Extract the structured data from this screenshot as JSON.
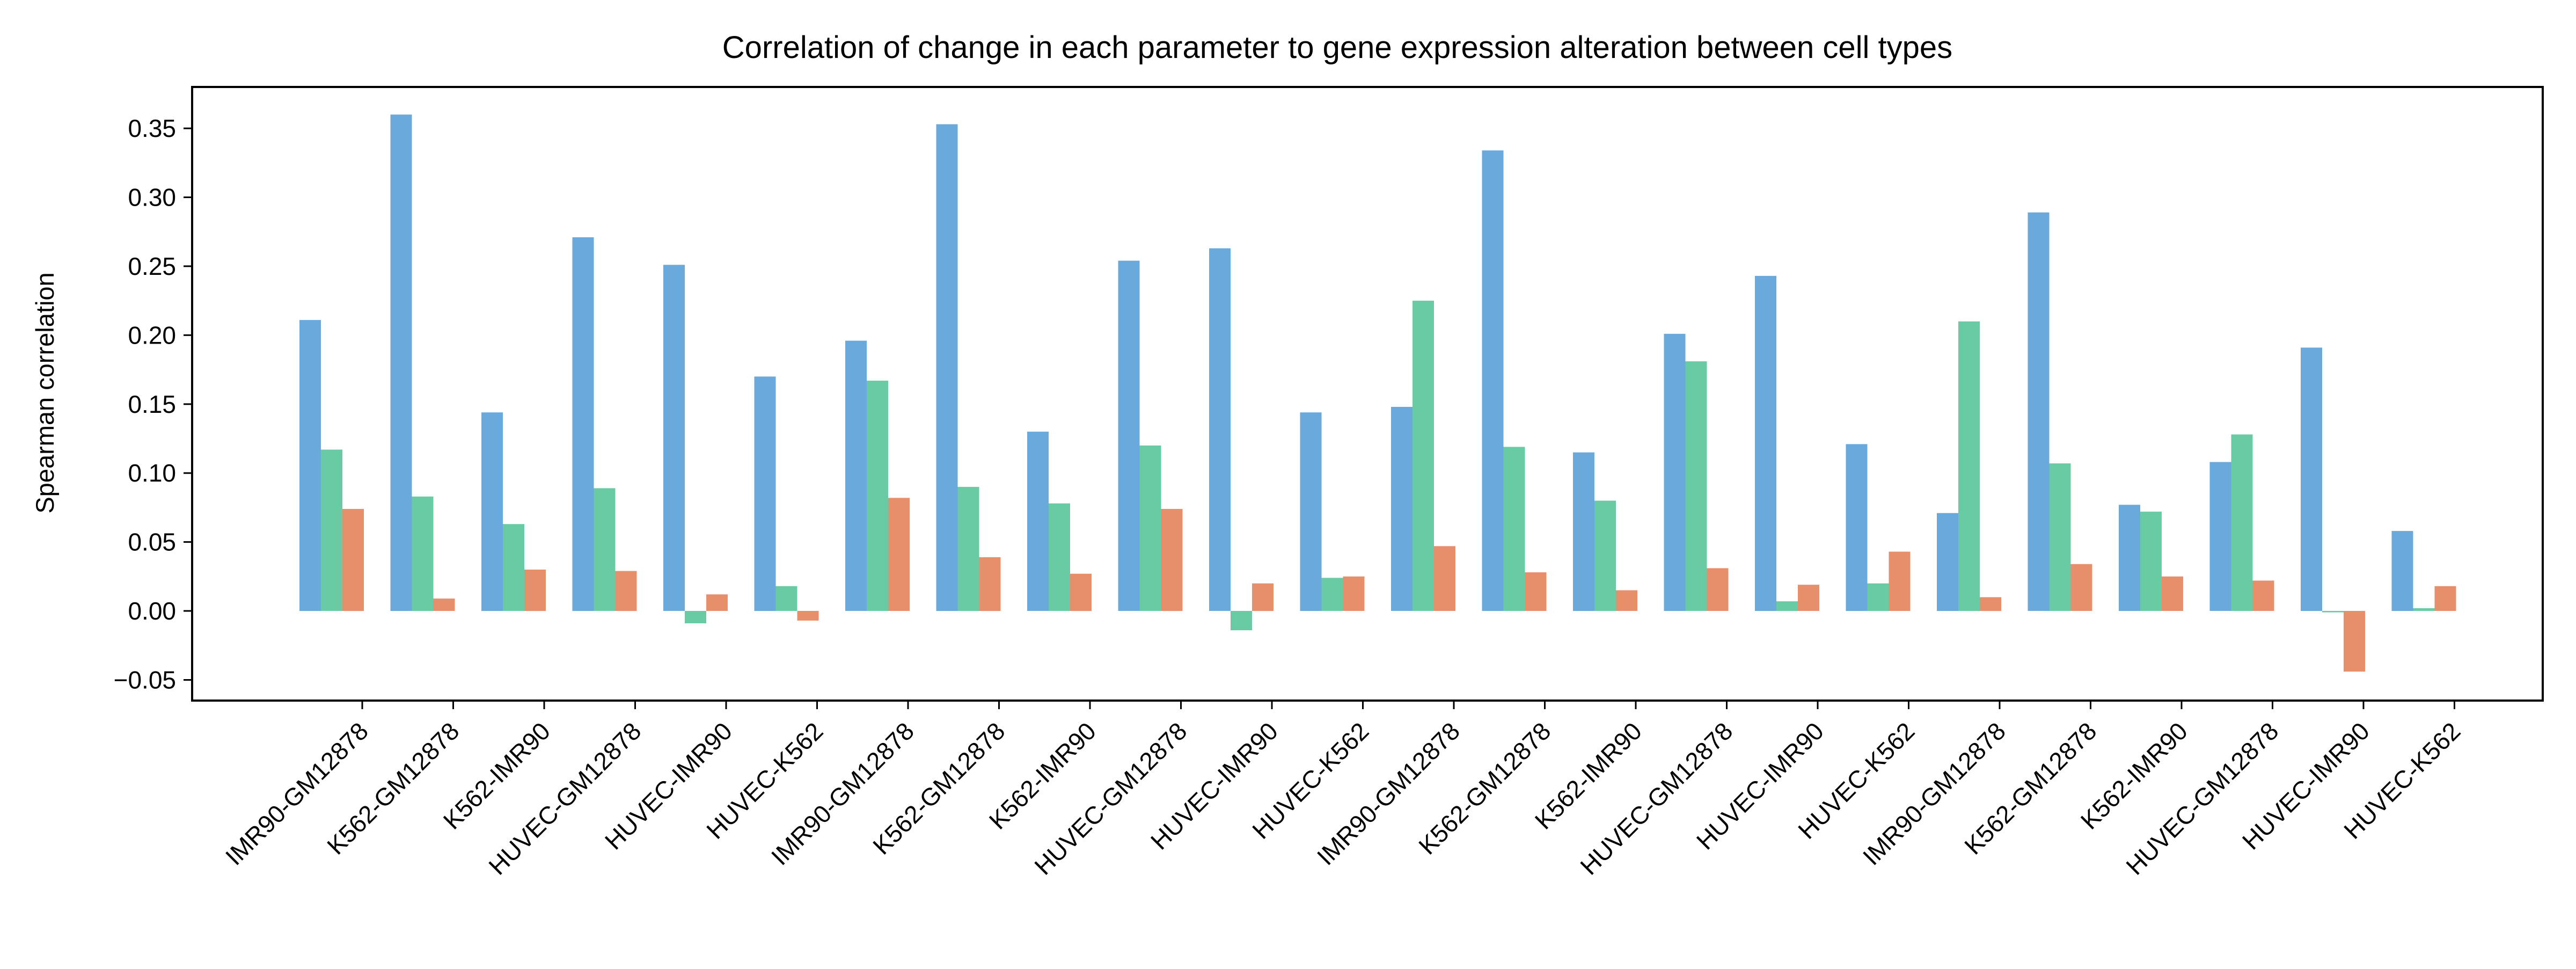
{
  "chart_data": {
    "type": "bar",
    "title": "Correlation of change in each parameter to gene expression alteration between cell types",
    "xlabel": "",
    "ylabel": "Spearman correlation",
    "ylim": [
      -0.065,
      0.38
    ],
    "yticks": [
      "−0.05",
      "0.00",
      "0.05",
      "0.10",
      "0.15",
      "0.20",
      "0.25",
      "0.30",
      "0.35"
    ],
    "ytick_values": [
      -0.05,
      0.0,
      0.05,
      0.1,
      0.15,
      0.2,
      0.25,
      0.3,
      0.35
    ],
    "grid": false,
    "legend": "none",
    "categories": [
      "IMR90-GM12878",
      "K562-GM12878",
      "K562-IMR90",
      "HUVEC-GM12878",
      "HUVEC-IMR90",
      "HUVEC-K562",
      "IMR90-GM12878",
      "K562-GM12878",
      "K562-IMR90",
      "HUVEC-GM12878",
      "HUVEC-IMR90",
      "HUVEC-K562",
      "IMR90-GM12878",
      "K562-GM12878",
      "K562-IMR90",
      "HUVEC-GM12878",
      "HUVEC-IMR90",
      "HUVEC-K562",
      "IMR90-GM12878",
      "K562-GM12878",
      "K562-IMR90",
      "HUVEC-GM12878",
      "HUVEC-IMR90",
      "HUVEC-K562"
    ],
    "series": [
      {
        "color": "#6aa9db",
        "values": [
          0.211,
          0.36,
          0.144,
          0.271,
          0.251,
          0.17,
          0.196,
          0.353,
          0.13,
          0.254,
          0.263,
          0.144,
          0.148,
          0.334,
          0.115,
          0.201,
          0.243,
          0.121,
          0.071,
          0.289,
          0.077,
          0.108,
          0.191,
          0.058
        ]
      },
      {
        "color": "#68cba3",
        "values": [
          0.117,
          0.083,
          0.063,
          0.089,
          -0.009,
          0.018,
          0.167,
          0.09,
          0.078,
          0.12,
          -0.014,
          0.024,
          0.225,
          0.119,
          0.08,
          0.181,
          0.007,
          0.02,
          0.21,
          0.107,
          0.072,
          0.128,
          -0.001,
          0.002
        ]
      },
      {
        "color": "#e78f6b",
        "values": [
          0.074,
          0.009,
          0.03,
          0.029,
          0.012,
          -0.007,
          0.082,
          0.039,
          0.027,
          0.074,
          0.02,
          0.025,
          0.047,
          0.028,
          0.015,
          0.031,
          0.019,
          0.043,
          0.01,
          0.034,
          0.025,
          0.022,
          -0.044,
          0.018
        ]
      }
    ]
  }
}
